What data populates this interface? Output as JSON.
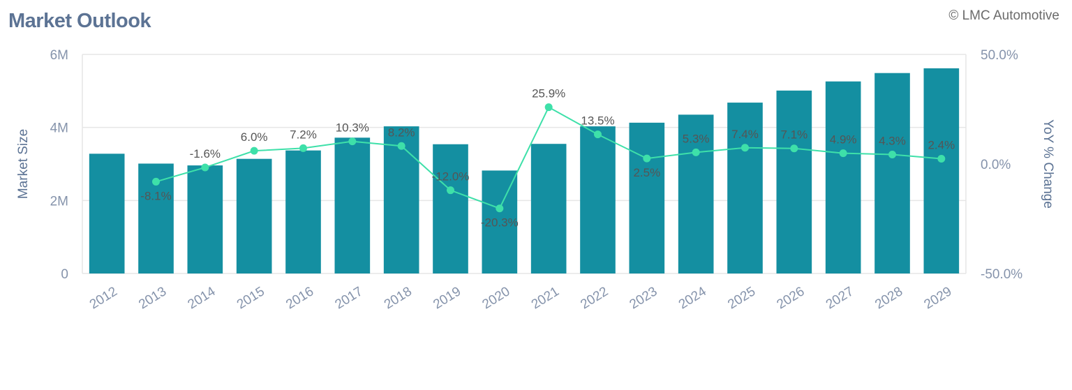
{
  "header": {
    "title": "Market Outlook",
    "credit": "© LMC Automotive"
  },
  "colors": {
    "bar": "#148fa1",
    "line": "#3ee0a9",
    "grid": "#e6e6e6",
    "tick": "#8593ab",
    "axis_label": "#5c7394"
  },
  "chart_data": {
    "type": "bar",
    "title": "",
    "categories": [
      "2012",
      "2013",
      "2014",
      "2015",
      "2016",
      "2017",
      "2018",
      "2019",
      "2020",
      "2021",
      "2022",
      "2023",
      "2024",
      "2025",
      "2026",
      "2027",
      "2028",
      "2029"
    ],
    "series": [
      {
        "name": "Market Size",
        "type": "bar",
        "axis": "left",
        "values": [
          3280000,
          3010000,
          2960000,
          3140000,
          3370000,
          3720000,
          4030000,
          3540000,
          2820000,
          3550000,
          4030000,
          4130000,
          4350000,
          4680000,
          5010000,
          5260000,
          5490000,
          5620000
        ]
      },
      {
        "name": "YoY % Change",
        "type": "line",
        "axis": "right",
        "values": [
          null,
          -8.1,
          -1.6,
          6.0,
          7.2,
          10.3,
          8.2,
          -12.0,
          -20.3,
          25.9,
          13.5,
          2.5,
          5.3,
          7.4,
          7.1,
          4.9,
          4.3,
          2.4
        ],
        "labels": [
          "",
          "-8.1%",
          "-1.6%",
          "6.0%",
          "7.2%",
          "10.3%",
          "8.2%",
          "-12.0%",
          "-20.3%",
          "25.9%",
          "13.5%",
          "2.5%",
          "5.3%",
          "7.4%",
          "7.1%",
          "4.9%",
          "4.3%",
          "2.4%"
        ]
      }
    ],
    "ylabel": "Market Size",
    "ylabel_right": "YoY % Change",
    "ylim": [
      0,
      6000000
    ],
    "ylim_right": [
      -50,
      50
    ],
    "yticks": [
      0,
      2000000,
      4000000,
      6000000
    ],
    "ytick_labels": [
      "0",
      "2M",
      "4M",
      "6M"
    ],
    "yticks_right": [
      -50,
      0,
      50
    ],
    "ytick_labels_right": [
      "-50.0%",
      "0.0%",
      "50.0%"
    ],
    "grid": true,
    "legend": "none"
  }
}
